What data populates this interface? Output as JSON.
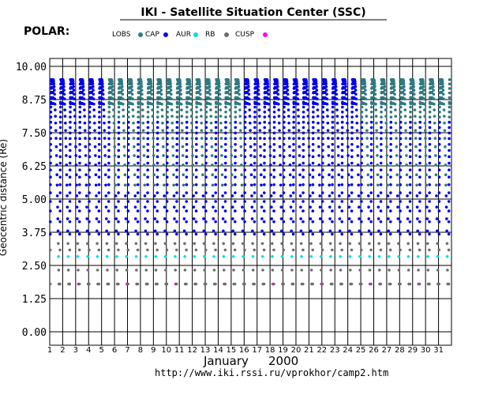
{
  "header": {
    "title": "IKI - Satellite Situation Center (SSC)",
    "satellite": "POLAR:"
  },
  "footer": {
    "url": "http://www.iki.rssi.ru/vprokhor/camp2.htm"
  },
  "chart_data": {
    "type": "scatter",
    "title": "IKI - Satellite Situation Center (SSC)",
    "ylabel": "Geocentric distance (Re)",
    "xlabel": "January    2000",
    "month_label": "January",
    "year_label": "2000",
    "ylim": [
      0.0,
      10.0
    ],
    "yticks": [
      "0.00",
      "1.25",
      "2.50",
      "3.75",
      "5.00",
      "6.25",
      "7.50",
      "8.75",
      "10.00"
    ],
    "xlim": [
      1,
      32
    ],
    "xticks": [
      "1",
      "2",
      "3",
      "4",
      "5",
      "6",
      "7",
      "8",
      "9",
      "10",
      "11",
      "12",
      "13",
      "14",
      "15",
      "16",
      "17",
      "18",
      "19",
      "20",
      "21",
      "22",
      "23",
      "24",
      "25",
      "26",
      "27",
      "28",
      "29",
      "30",
      "31"
    ],
    "grid": true,
    "legend_placement": "top",
    "legend": [
      {
        "name": "LOBS",
        "color": "#2e7b80"
      },
      {
        "name": "CAP",
        "color": "#0000ee"
      },
      {
        "name": "AUR",
        "color": "#00e0e8"
      },
      {
        "name": "RB",
        "color": "#6e6e6e"
      },
      {
        "name": "CUSP",
        "color": "#ff00ee"
      }
    ],
    "orbit": {
      "period_days": 0.75,
      "first_perigee_day": 1.0,
      "perigee_re": 1.8,
      "apogee_re": 9.5
    }
  }
}
